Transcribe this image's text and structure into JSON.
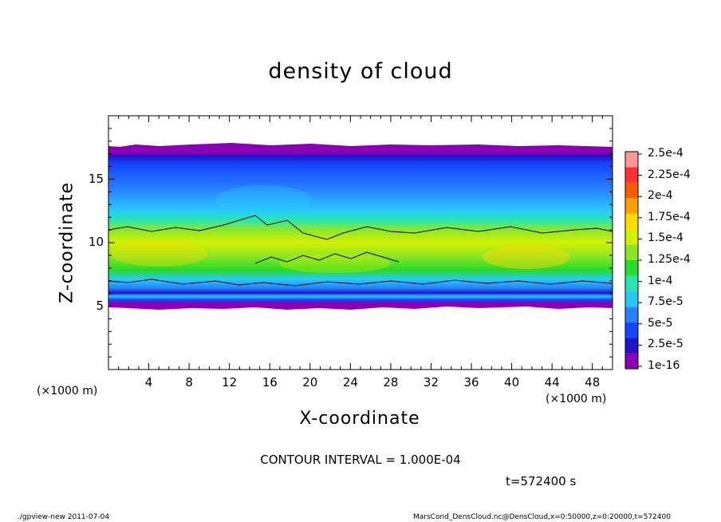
{
  "chart_data": {
    "type": "heatmap",
    "title": "density of cloud",
    "xlabel": "X-coordinate",
    "ylabel": "Z-coordinate",
    "x_unit": "(×1000 m)",
    "y_unit": "(×1000 m)",
    "xlim": [
      0,
      50
    ],
    "ylim": [
      0,
      20
    ],
    "xticks": [
      "4",
      "8",
      "12",
      "16",
      "20",
      "24",
      "28",
      "32",
      "36",
      "40",
      "44",
      "48"
    ],
    "yticks": [
      "5",
      "10",
      "15"
    ],
    "colorbar": {
      "labels": [
        "2.5e-4",
        "2.25e-4",
        "2e-4",
        "1.75e-4",
        "1.5e-4",
        "1.25e-4",
        "1e-4",
        "7.5e-5",
        "5e-5",
        "2.5e-5",
        "1e-16"
      ],
      "colors": [
        "#8b00b4",
        "#1e14c8",
        "#1446ff",
        "#2882ff",
        "#28c8ff",
        "#28e6b4",
        "#28dc28",
        "#8ce628",
        "#d2f000",
        "#ffdc00",
        "#ffa000",
        "#ff5a00",
        "#ff3232",
        "#ff9696"
      ]
    },
    "contour_interval_label": "CONTOUR INTERVAL = 1.000E-04",
    "time_label": "t=572400 s"
  },
  "footer": {
    "left": "./gpview-new  2011-07-04",
    "right": "MarsCond_DensCloud.nc@DensCloud,x=0:50000,z=0:20000,t=572400"
  }
}
